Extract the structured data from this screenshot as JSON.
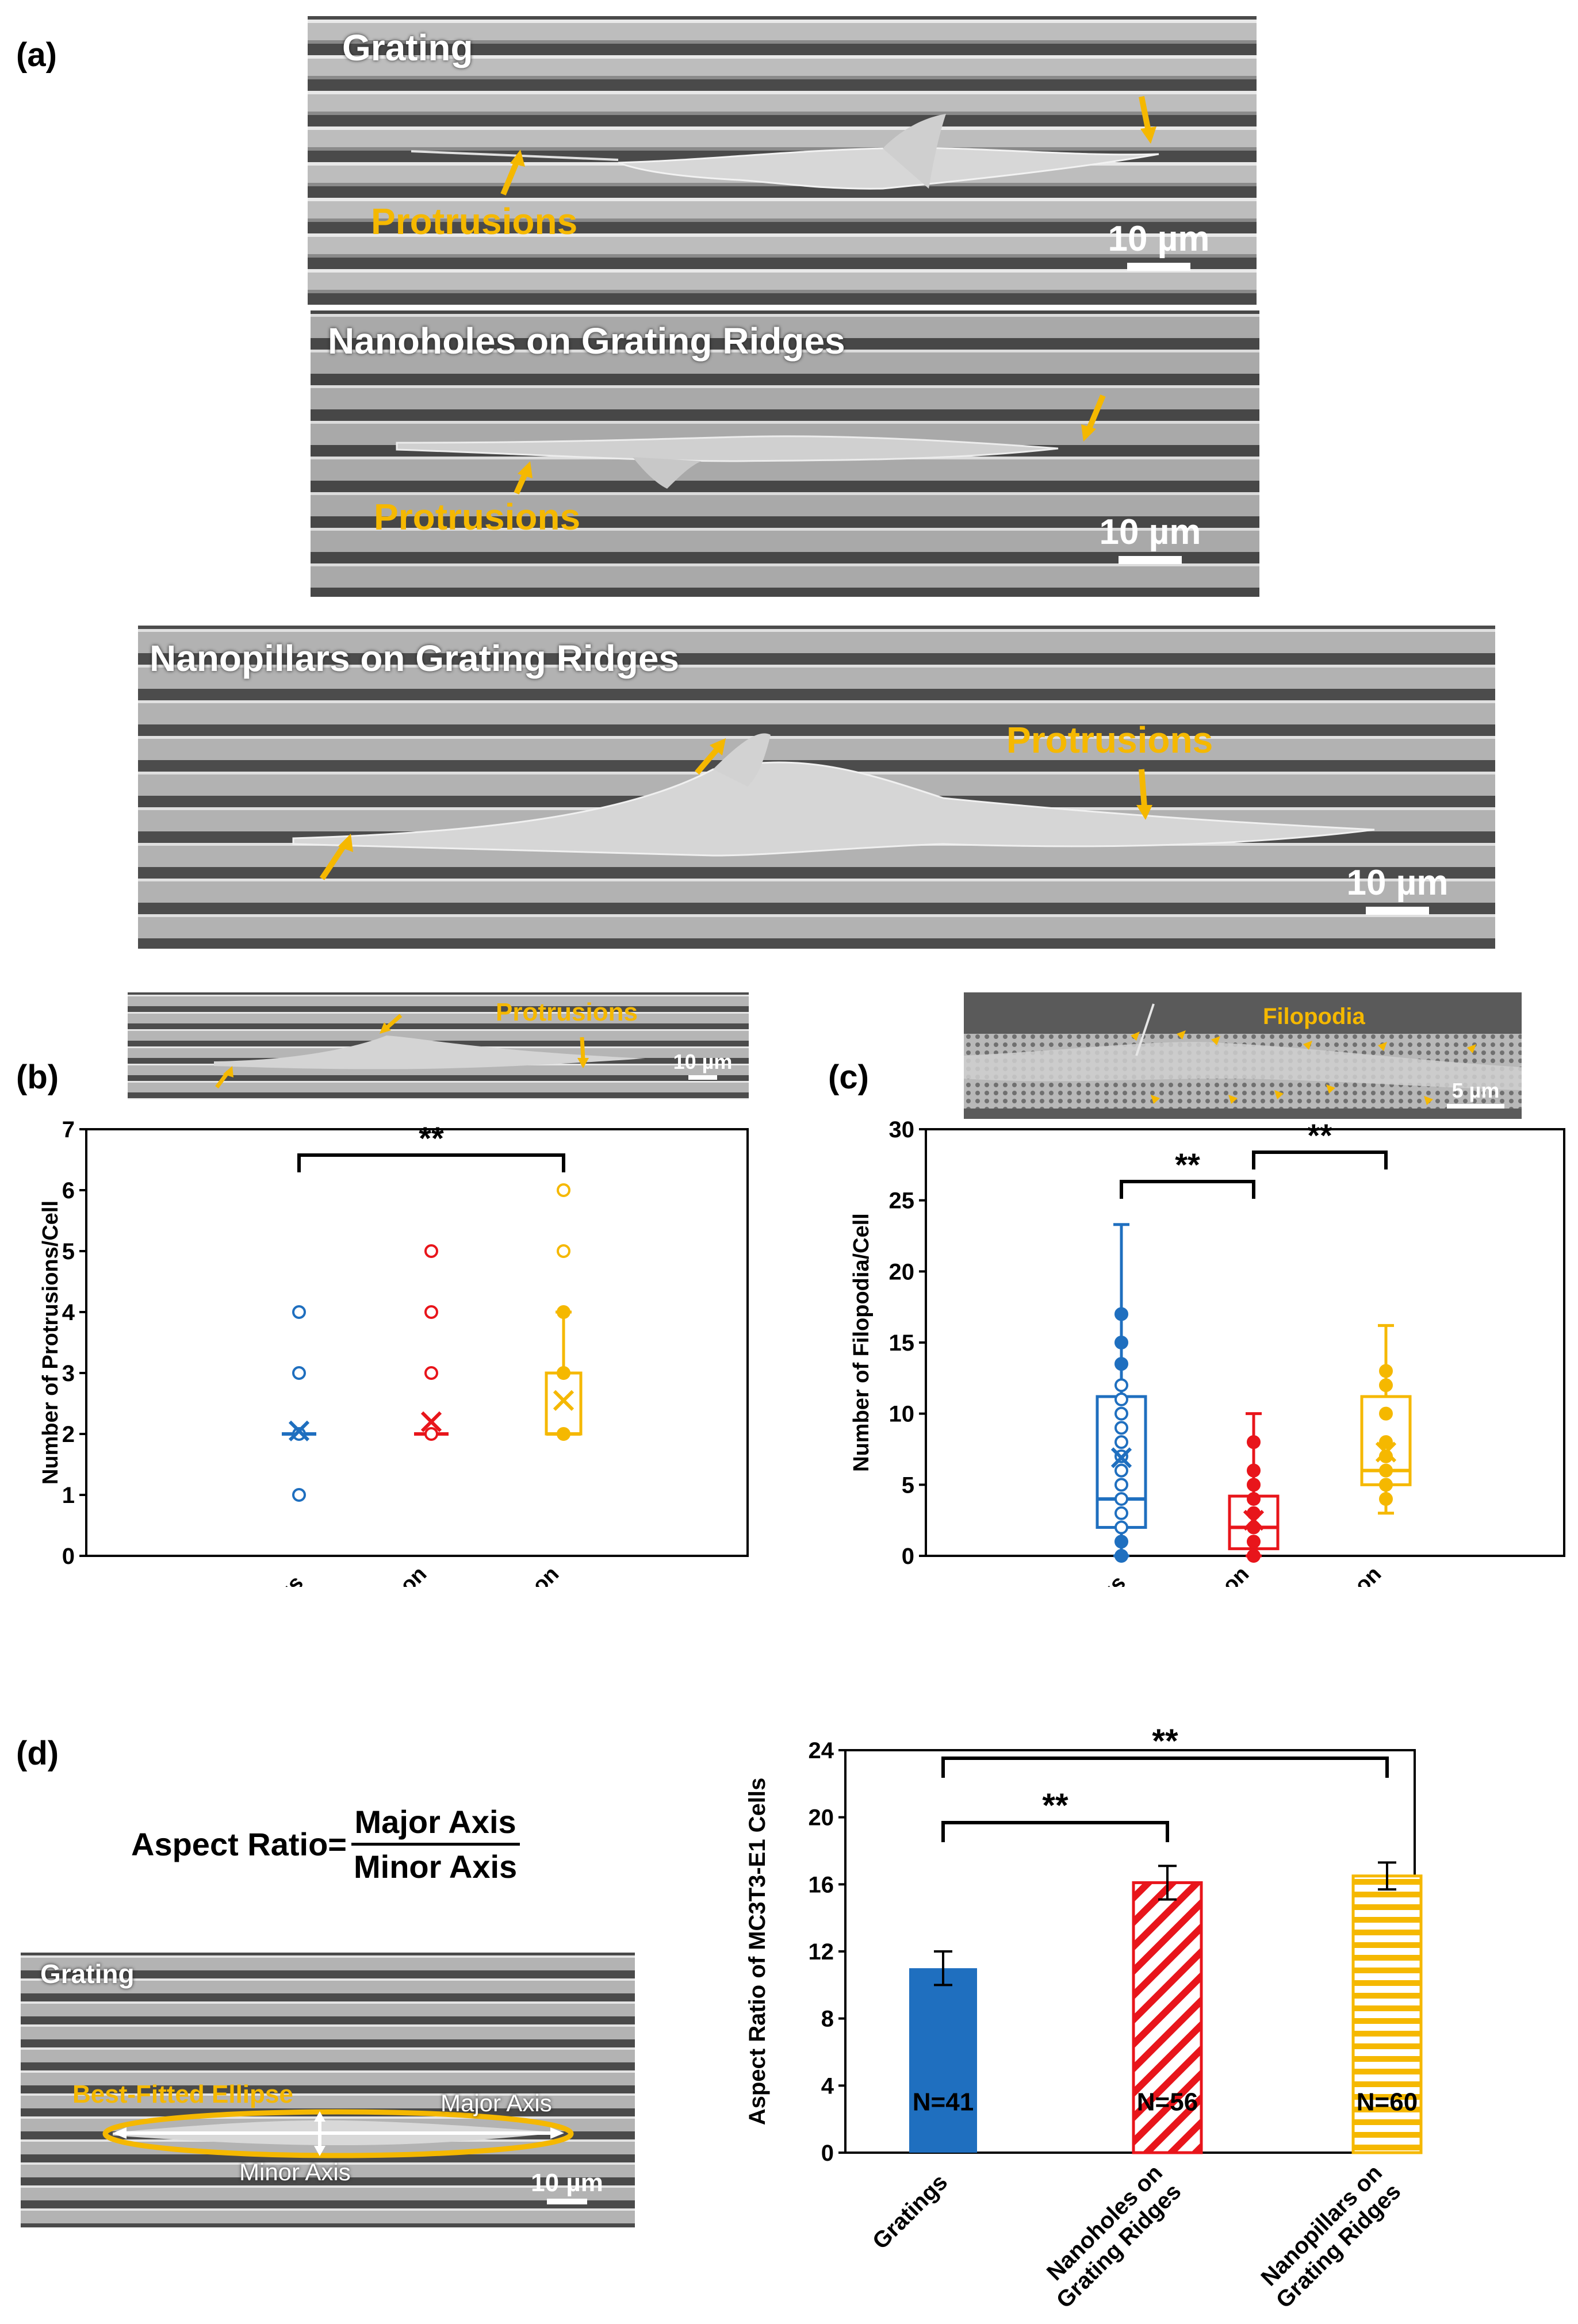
{
  "colors": {
    "blue": "#1f6fbf",
    "red": "#e8151b",
    "yellow": "#f5b800",
    "arrow": "#f5b800"
  },
  "panel_a": {
    "letter": "(a)",
    "images": [
      {
        "title": "Grating",
        "label": "Protrusions",
        "scale": "10 µm"
      },
      {
        "title": "Nanoholes on Grating Ridges",
        "label": "Protrusions",
        "scale": "10 µm"
      },
      {
        "title": "Nanopillars on Grating Ridges",
        "label": "Protrusions",
        "scale": "10 µm"
      }
    ]
  },
  "panel_b": {
    "letter": "(b)",
    "inset": {
      "label": "Protrusions",
      "scale": "10 µm"
    },
    "significance": "**"
  },
  "panel_c": {
    "letter": "(c)",
    "inset": {
      "label": "Filopodia",
      "scale": "5 µm"
    },
    "significance_1": "**",
    "significance_2": "**"
  },
  "panel_d": {
    "letter": "(d)",
    "formula": {
      "lhs": "Aspect Ratio=",
      "numerator": "Major Axis",
      "denominator": "Minor Axis"
    },
    "image": {
      "title": "Grating",
      "ellipse_label": "Best-Fitted Ellipse",
      "major": "Major Axis",
      "minor": "Minor Axis",
      "scale": "10 µm"
    },
    "significance_1": "**",
    "significance_2": "**"
  },
  "chart_data": [
    {
      "id": "b",
      "type": "box",
      "ylabel": "Number of Protrusions/Cell",
      "ylim": [
        0,
        7
      ],
      "yticks": [
        0,
        1,
        2,
        3,
        4,
        5,
        6,
        7
      ],
      "categories": [
        "Gratings",
        "Nanoholes on\nGrating Ridges",
        "Nanopillars on\nGrating Ridges"
      ],
      "series": [
        {
          "name": "Gratings",
          "q1": 2,
          "median": 2,
          "q3": 2,
          "whisker_low": 2,
          "whisker_high": 2,
          "mean": 2.05,
          "points": [
            1,
            2,
            3,
            4
          ],
          "filled": false
        },
        {
          "name": "Nanoholes on Grating Ridges",
          "q1": 2,
          "median": 2,
          "q3": 2,
          "whisker_low": 2,
          "whisker_high": 2,
          "mean": 2.2,
          "points": [
            2,
            3,
            4,
            5
          ],
          "filled": false
        },
        {
          "name": "Nanopillars on Grating Ridges",
          "q1": 2,
          "median": 2,
          "q3": 3,
          "whisker_low": 2,
          "whisker_high": 4,
          "mean": 2.55,
          "points": [
            2,
            3,
            4
          ],
          "outliers": [
            5,
            6
          ],
          "filled": true
        }
      ],
      "significance": [
        {
          "from": 0,
          "to": 2,
          "label": "**"
        }
      ]
    },
    {
      "id": "c",
      "type": "box",
      "ylabel": "Number of Filopodia/Cell",
      "ylim": [
        0,
        30
      ],
      "yticks": [
        0,
        5,
        10,
        15,
        20,
        25,
        30
      ],
      "categories": [
        "Gratings",
        "Nanoholes on\nGrating Ridges",
        "Nanopillars on\nGrating Ridges"
      ],
      "series": [
        {
          "name": "Gratings",
          "q1": 2,
          "median": 4,
          "q3": 11.2,
          "whisker_low": 0,
          "whisker_high": 23.3,
          "mean": 6.9,
          "points": [
            0,
            1,
            2,
            3,
            4,
            5,
            6,
            7,
            8,
            9,
            10,
            11,
            12,
            13.5,
            15,
            17
          ],
          "filled_points": [
            0,
            1,
            13.5,
            15,
            17
          ]
        },
        {
          "name": "Nanoholes on Grating Ridges",
          "q1": 0.5,
          "median": 2,
          "q3": 4.2,
          "whisker_low": 0,
          "whisker_high": 10,
          "mean": 2.5,
          "points": [
            0,
            1,
            2,
            3,
            4,
            5,
            6,
            8
          ],
          "filled_points": [
            0,
            1,
            2,
            3,
            4,
            5,
            6,
            8
          ]
        },
        {
          "name": "Nanopillars on Grating Ridges",
          "q1": 5,
          "median": 6,
          "q3": 11.2,
          "whisker_low": 3,
          "whisker_high": 16.2,
          "mean": 7.3,
          "points": [
            4,
            5,
            6,
            7,
            8,
            10,
            12,
            13
          ],
          "filled_points": [
            4,
            5,
            6,
            7,
            8,
            10,
            12,
            13
          ]
        }
      ],
      "significance": [
        {
          "from": 0,
          "to": 1,
          "label": "**"
        },
        {
          "from": 1,
          "to": 2,
          "label": "**"
        }
      ]
    },
    {
      "id": "d",
      "type": "bar",
      "ylabel": "Aspect Ratio of MC3T3-E1 Cells",
      "ylim": [
        0,
        24
      ],
      "yticks": [
        0,
        4,
        8,
        12,
        16,
        20,
        24
      ],
      "categories": [
        "Gratings",
        "Nanoholes on\nGrating Ridges",
        "Nanopillars on\nGrating Ridges"
      ],
      "values": [
        11,
        16.1,
        16.5
      ],
      "errors": [
        1,
        1,
        0.8
      ],
      "n_labels": [
        "N=41",
        "N=56",
        "N=60"
      ],
      "patterns": [
        "solid",
        "diagonal",
        "horizontal"
      ],
      "significance": [
        {
          "from": 0,
          "to": 1,
          "label": "**"
        },
        {
          "from": 0,
          "to": 2,
          "label": "**"
        }
      ]
    }
  ]
}
